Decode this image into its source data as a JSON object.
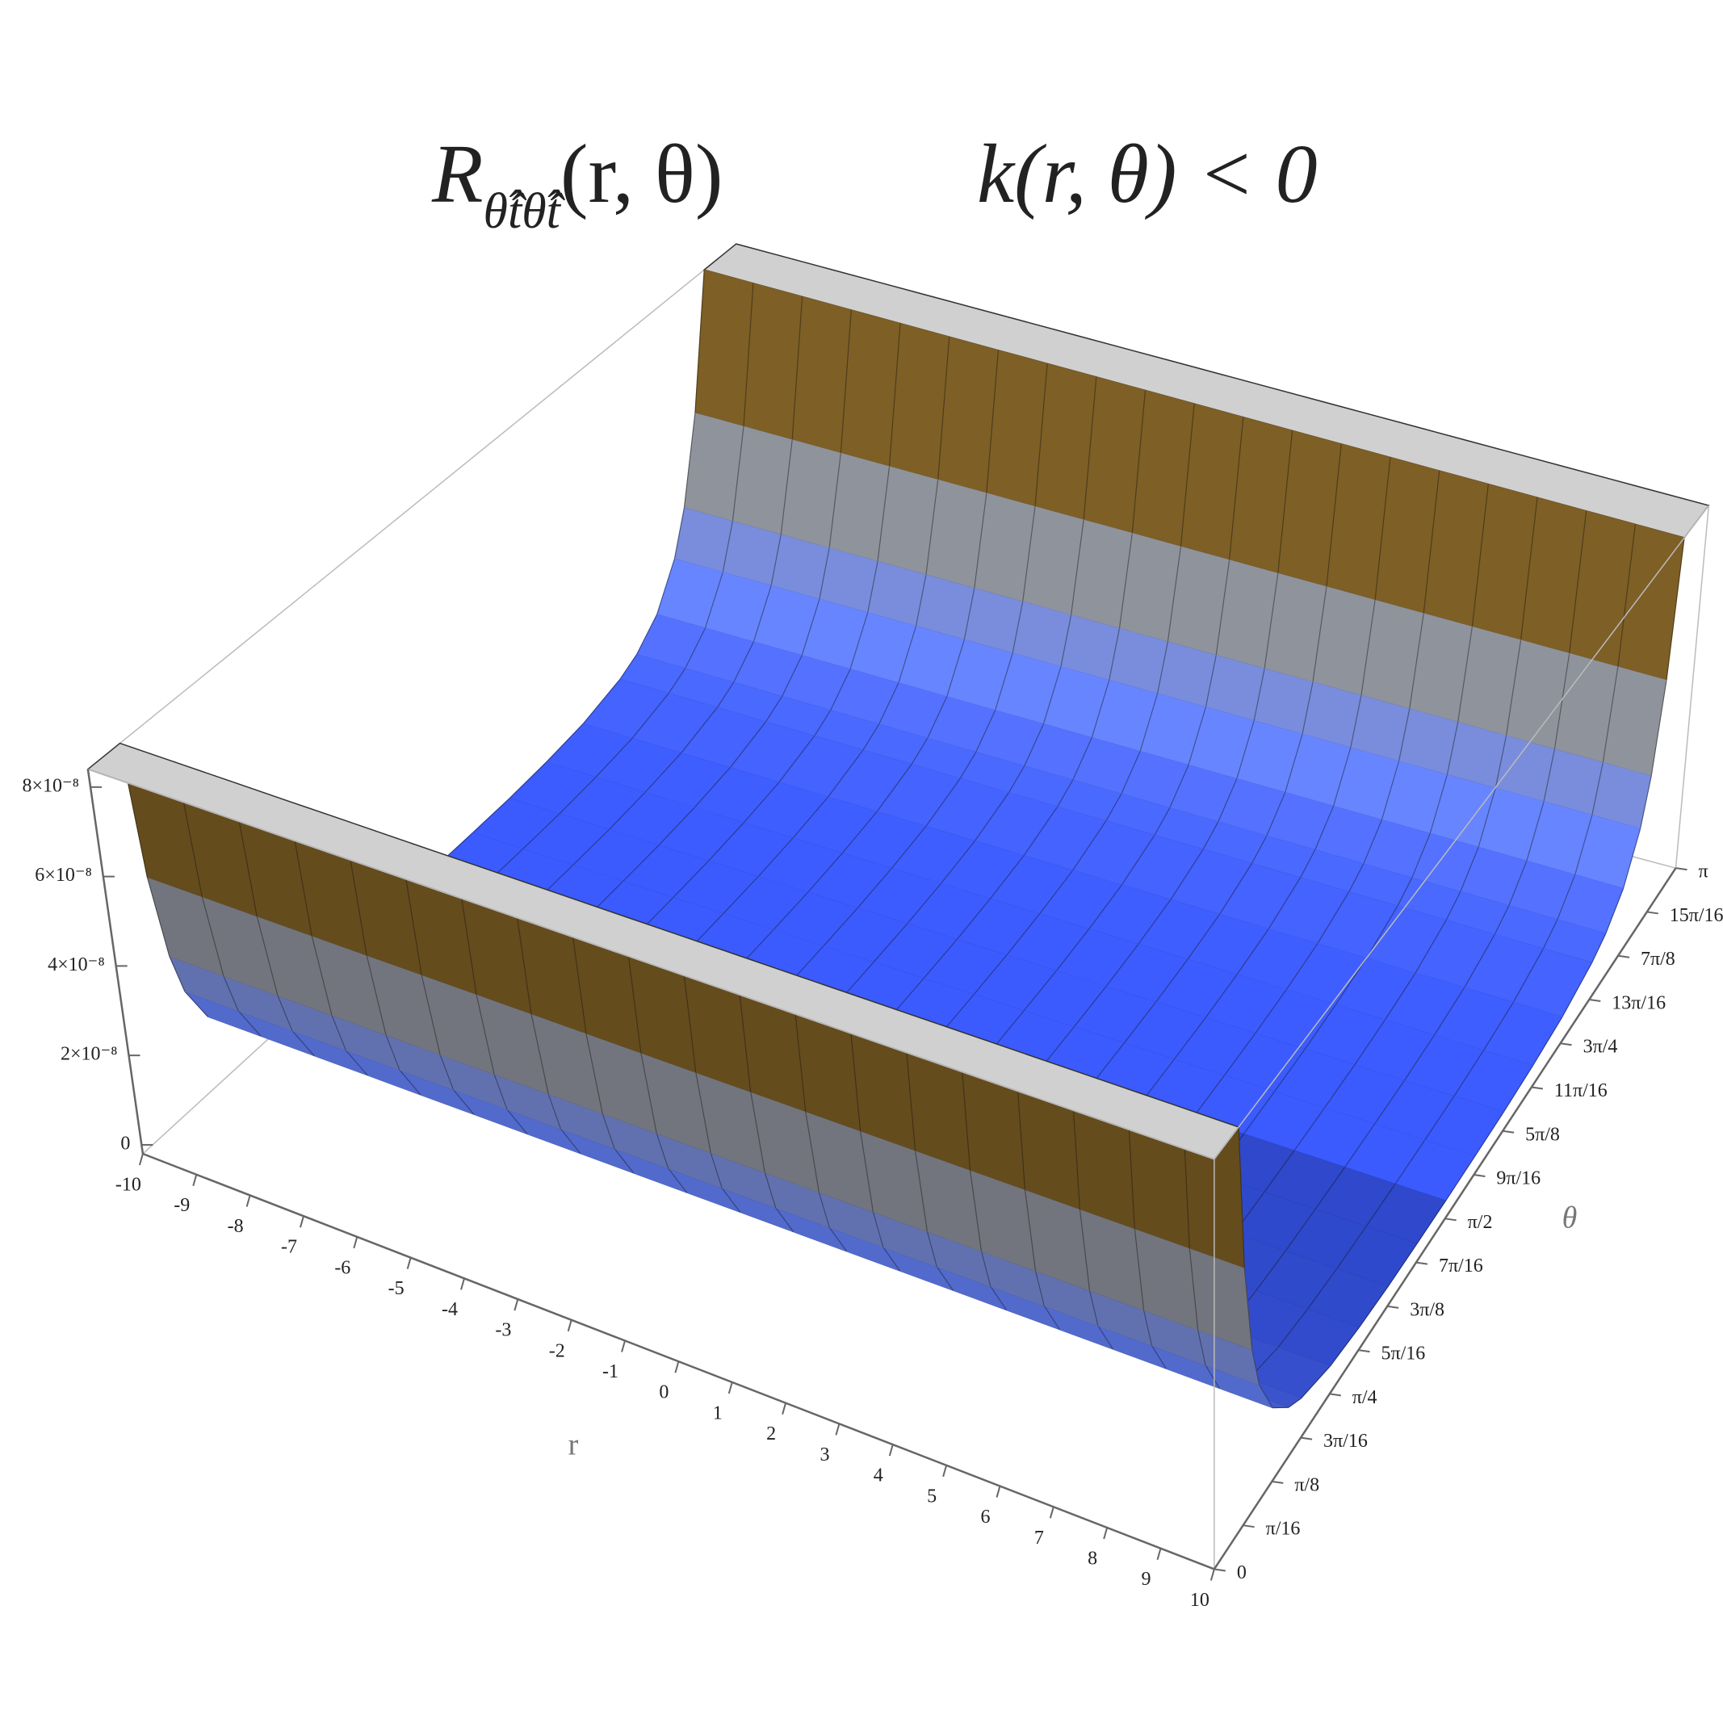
{
  "chart_data": {
    "type": "surface3d",
    "title_main": "R",
    "title_subscript": "θ̂t̂θ̂t̂",
    "title_args": "(r, θ)",
    "title_condition": "k(r, θ) < 0",
    "x_label": "r",
    "y_label": "θ",
    "xlim": [
      -10,
      10
    ],
    "xticks": [
      -10,
      -9,
      -8,
      -7,
      -6,
      -5,
      -4,
      -3,
      -2,
      -1,
      0,
      1,
      2,
      3,
      4,
      5,
      6,
      7,
      8,
      9,
      10
    ],
    "ylim": [
      0,
      3.14159
    ],
    "yticks": [
      0,
      {
        "value": 0.19635,
        "label": "π/16"
      },
      {
        "value": 0.3927,
        "label": "π/8"
      },
      {
        "value": 0.58905,
        "label": "3π/16"
      },
      {
        "value": 0.7854,
        "label": "π/4"
      },
      {
        "value": 0.98175,
        "label": "5π/16"
      },
      {
        "value": 1.1781,
        "label": "3π/8"
      },
      {
        "value": 1.37445,
        "label": "7π/16"
      },
      {
        "value": 1.5708,
        "label": "π/2"
      },
      {
        "value": 1.76715,
        "label": "9π/16"
      },
      {
        "value": 1.9635,
        "label": "5π/8"
      },
      {
        "value": 2.15985,
        "label": "11π/16"
      },
      {
        "value": 2.3562,
        "label": "3π/4"
      },
      {
        "value": 2.55254,
        "label": "13π/16"
      },
      {
        "value": 2.74889,
        "label": "7π/8"
      },
      {
        "value": 2.94524,
        "label": "15π/16"
      },
      {
        "value": 3.14159,
        "label": "π"
      }
    ],
    "zlim": [
      -2e-09,
      8.4e-08
    ],
    "zticks": [
      0,
      {
        "value": 2e-08,
        "label": "2×10⁻⁸"
      },
      {
        "value": 4e-08,
        "label": "4×10⁻⁸"
      },
      {
        "value": 6e-08,
        "label": "6×10⁻⁸"
      },
      {
        "value": 8e-08,
        "label": "8×10⁻⁸"
      }
    ],
    "theta": [
      0.155,
      0.19635,
      0.25,
      0.3,
      0.3927,
      0.5,
      0.589,
      0.7854,
      0.9817,
      1.1781,
      1.3744,
      1.5708,
      1.7671,
      1.9635,
      2.1598,
      2.3562,
      2.5525,
      2.6416,
      2.7489,
      2.8416,
      2.8916,
      2.9452,
      2.9866
    ],
    "values": [
      8.4e-08,
      5.25e-08,
      3.27e-08,
      2.29e-08,
      1.37e-08,
      8.7e-09,
      6.5e-09,
      4e-09,
      2.9e-09,
      2.3e-09,
      2.1e-09,
      2e-09,
      2.1e-09,
      2.3e-09,
      2.9e-09,
      4e-09,
      6.5e-09,
      8.7e-09,
      1.37e-08,
      2.29e-08,
      3.27e-08,
      5.25e-08,
      8.4e-08
    ],
    "colormap": [
      "#3050ff",
      "#6a88ff",
      "#9095a5",
      "#807828",
      "#7a1c1c"
    ],
    "clip_color": "#d0d0d0"
  }
}
